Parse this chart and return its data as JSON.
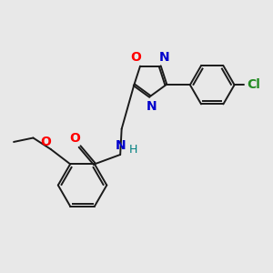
{
  "background_color": "#e8e8e8",
  "bond_color": "#1a1a1a",
  "o_color": "#ff0000",
  "n_color": "#0000cc",
  "cl_color": "#228B22",
  "nh_color": "#008080",
  "figsize": [
    3.0,
    3.0
  ],
  "dpi": 100,
  "xlim": [
    0,
    10
  ],
  "ylim": [
    0,
    10
  ]
}
